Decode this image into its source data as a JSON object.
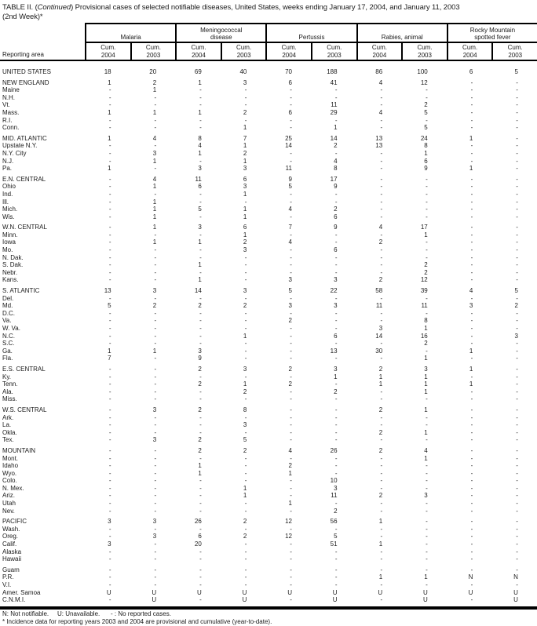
{
  "title": {
    "part1": "TABLE II. (",
    "italic": "Continued",
    "part2": ") Provisional cases of selected notifiable diseases, United States, weeks ending January 17, 2004, and January 11, 2003",
    "line2": "(2nd Week)*"
  },
  "header": {
    "reporting_area": "Reporting area",
    "groups": [
      {
        "name": "Malaria",
        "sub": [
          "Cum.\n2004",
          "Cum.\n2003"
        ]
      },
      {
        "name": "Meningococcal\ndisease",
        "sub": [
          "Cum.\n2004",
          "Cum.\n2003"
        ]
      },
      {
        "name": "Pertussis",
        "sub": [
          "Cum.\n2004",
          "Cum.\n2003"
        ]
      },
      {
        "name": "Rabies, animal",
        "sub": [
          "Cum.\n2004",
          "Cum.\n2003"
        ]
      },
      {
        "name": "Rocky Mountain\nspotted fever",
        "sub": [
          "Cum.\n2004",
          "Cum.\n2003"
        ]
      }
    ]
  },
  "sections": [
    {
      "rows": [
        {
          "area": "UNITED STATES",
          "values": [
            "18",
            "20",
            "69",
            "40",
            "70",
            "188",
            "86",
            "100",
            "6",
            "5"
          ]
        }
      ]
    },
    {
      "rows": [
        {
          "area": "NEW ENGLAND",
          "values": [
            "1",
            "2",
            "1",
            "3",
            "6",
            "41",
            "4",
            "12",
            "-",
            "-"
          ]
        },
        {
          "area": "Maine",
          "values": [
            "-",
            "1",
            "-",
            "-",
            "-",
            "-",
            "-",
            "-",
            "-",
            "-"
          ]
        },
        {
          "area": "N.H.",
          "values": [
            "-",
            "-",
            "-",
            "-",
            "-",
            "-",
            "-",
            "-",
            "-",
            "-"
          ]
        },
        {
          "area": "Vt.",
          "values": [
            "-",
            "-",
            "-",
            "-",
            "-",
            "11",
            "-",
            "2",
            "-",
            "-"
          ]
        },
        {
          "area": "Mass.",
          "values": [
            "1",
            "1",
            "1",
            "2",
            "6",
            "29",
            "4",
            "5",
            "-",
            "-"
          ]
        },
        {
          "area": "R.I.",
          "values": [
            "-",
            "-",
            "-",
            "-",
            "-",
            "-",
            "-",
            "-",
            "-",
            "-"
          ]
        },
        {
          "area": "Conn.",
          "values": [
            "-",
            "-",
            "-",
            "1",
            "-",
            "1",
            "-",
            "5",
            "-",
            "-"
          ]
        }
      ]
    },
    {
      "rows": [
        {
          "area": "MID. ATLANTIC",
          "values": [
            "1",
            "4",
            "8",
            "7",
            "25",
            "14",
            "13",
            "24",
            "1",
            "-"
          ]
        },
        {
          "area": "Upstate N.Y.",
          "values": [
            "-",
            "-",
            "4",
            "1",
            "14",
            "2",
            "13",
            "8",
            "-",
            "-"
          ]
        },
        {
          "area": "N.Y. City",
          "values": [
            "-",
            "3",
            "1",
            "2",
            "-",
            "-",
            "-",
            "1",
            "-",
            "-"
          ]
        },
        {
          "area": "N.J.",
          "values": [
            "-",
            "1",
            "-",
            "1",
            "-",
            "4",
            "-",
            "6",
            "-",
            "-"
          ]
        },
        {
          "area": "Pa.",
          "values": [
            "1",
            "-",
            "3",
            "3",
            "11",
            "8",
            "-",
            "9",
            "1",
            "-"
          ]
        }
      ]
    },
    {
      "rows": [
        {
          "area": "E.N. CENTRAL",
          "values": [
            "-",
            "4",
            "11",
            "6",
            "9",
            "17",
            "-",
            "-",
            "-",
            "-"
          ]
        },
        {
          "area": "Ohio",
          "values": [
            "-",
            "1",
            "6",
            "3",
            "5",
            "9",
            "-",
            "-",
            "-",
            "-"
          ]
        },
        {
          "area": "Ind.",
          "values": [
            "-",
            "-",
            "-",
            "1",
            "-",
            "-",
            "-",
            "-",
            "-",
            "-"
          ]
        },
        {
          "area": "Ill.",
          "values": [
            "-",
            "1",
            "-",
            "-",
            "-",
            "-",
            "-",
            "-",
            "-",
            "-"
          ]
        },
        {
          "area": "Mich.",
          "values": [
            "-",
            "1",
            "5",
            "1",
            "4",
            "2",
            "-",
            "-",
            "-",
            "-"
          ]
        },
        {
          "area": "Wis.",
          "values": [
            "-",
            "1",
            "-",
            "1",
            "-",
            "6",
            "-",
            "-",
            "-",
            "-"
          ]
        }
      ]
    },
    {
      "rows": [
        {
          "area": "W.N. CENTRAL",
          "values": [
            "-",
            "1",
            "3",
            "6",
            "7",
            "9",
            "4",
            "17",
            "-",
            "-"
          ]
        },
        {
          "area": "Minn.",
          "values": [
            "-",
            "-",
            "-",
            "1",
            "-",
            "-",
            "-",
            "1",
            "-",
            "-"
          ]
        },
        {
          "area": "Iowa",
          "values": [
            "-",
            "1",
            "1",
            "2",
            "4",
            "-",
            "2",
            "-",
            "-",
            "-"
          ]
        },
        {
          "area": "Mo.",
          "values": [
            "-",
            "-",
            "-",
            "3",
            "-",
            "6",
            "-",
            "-",
            "-",
            "-"
          ]
        },
        {
          "area": "N. Dak.",
          "values": [
            "-",
            "-",
            "-",
            "-",
            "-",
            "-",
            "-",
            "-",
            "-",
            "-"
          ]
        },
        {
          "area": "S. Dak.",
          "values": [
            "-",
            "-",
            "1",
            "-",
            "-",
            "-",
            "-",
            "2",
            "-",
            "-"
          ]
        },
        {
          "area": "Nebr.",
          "values": [
            "-",
            "-",
            "-",
            "-",
            "-",
            "-",
            "-",
            "2",
            "-",
            "-"
          ]
        },
        {
          "area": "Kans.",
          "values": [
            "-",
            "-",
            "1",
            "-",
            "3",
            "3",
            "2",
            "12",
            "-",
            "-"
          ]
        }
      ]
    },
    {
      "rows": [
        {
          "area": "S. ATLANTIC",
          "values": [
            "13",
            "3",
            "14",
            "3",
            "5",
            "22",
            "58",
            "39",
            "4",
            "5"
          ]
        },
        {
          "area": "Del.",
          "values": [
            "-",
            "-",
            "-",
            "-",
            "-",
            "-",
            "-",
            "-",
            "-",
            "-"
          ]
        },
        {
          "area": "Md.",
          "values": [
            "5",
            "2",
            "2",
            "2",
            "3",
            "3",
            "11",
            "11",
            "3",
            "2"
          ]
        },
        {
          "area": "D.C.",
          "values": [
            "-",
            "-",
            "-",
            "-",
            "-",
            "-",
            "-",
            "-",
            "-",
            "-"
          ]
        },
        {
          "area": "Va.",
          "values": [
            "-",
            "-",
            "-",
            "-",
            "2",
            "-",
            "-",
            "8",
            "-",
            "-"
          ]
        },
        {
          "area": "W. Va.",
          "values": [
            "-",
            "-",
            "-",
            "-",
            "-",
            "-",
            "3",
            "1",
            "-",
            "-"
          ]
        },
        {
          "area": "N.C.",
          "values": [
            "-",
            "-",
            "-",
            "1",
            "-",
            "6",
            "14",
            "16",
            "-",
            "3"
          ]
        },
        {
          "area": "S.C.",
          "values": [
            "-",
            "-",
            "-",
            "-",
            "-",
            "-",
            "-",
            "2",
            "-",
            "-"
          ]
        },
        {
          "area": "Ga.",
          "values": [
            "1",
            "1",
            "3",
            "-",
            "-",
            "13",
            "30",
            "-",
            "1",
            "-"
          ]
        },
        {
          "area": "Fla.",
          "values": [
            "7",
            "-",
            "9",
            "-",
            "-",
            "-",
            "-",
            "1",
            "-",
            "-"
          ]
        }
      ]
    },
    {
      "rows": [
        {
          "area": "E.S. CENTRAL",
          "values": [
            "-",
            "-",
            "2",
            "3",
            "2",
            "3",
            "2",
            "3",
            "1",
            "-"
          ]
        },
        {
          "area": "Ky.",
          "values": [
            "-",
            "-",
            "-",
            "-",
            "-",
            "1",
            "1",
            "1",
            "-",
            "-"
          ]
        },
        {
          "area": "Tenn.",
          "values": [
            "-",
            "-",
            "2",
            "1",
            "2",
            "-",
            "1",
            "1",
            "1",
            "-"
          ]
        },
        {
          "area": "Ala.",
          "values": [
            "-",
            "-",
            "-",
            "2",
            "-",
            "2",
            "-",
            "1",
            "-",
            "-"
          ]
        },
        {
          "area": "Miss.",
          "values": [
            "-",
            "-",
            "-",
            "-",
            "-",
            "-",
            "-",
            "-",
            "-",
            "-"
          ]
        }
      ]
    },
    {
      "rows": [
        {
          "area": "W.S. CENTRAL",
          "values": [
            "-",
            "3",
            "2",
            "8",
            "-",
            "-",
            "2",
            "1",
            "-",
            "-"
          ]
        },
        {
          "area": "Ark.",
          "values": [
            "-",
            "-",
            "-",
            "-",
            "-",
            "-",
            "-",
            "-",
            "-",
            "-"
          ]
        },
        {
          "area": "La.",
          "values": [
            "-",
            "-",
            "-",
            "3",
            "-",
            "-",
            "-",
            "-",
            "-",
            "-"
          ]
        },
        {
          "area": "Okla.",
          "values": [
            "-",
            "-",
            "-",
            "-",
            "-",
            "-",
            "2",
            "1",
            "-",
            "-"
          ]
        },
        {
          "area": "Tex.",
          "values": [
            "-",
            "3",
            "2",
            "5",
            "-",
            "-",
            "-",
            "-",
            "-",
            "-"
          ]
        }
      ]
    },
    {
      "rows": [
        {
          "area": "MOUNTAIN",
          "values": [
            "-",
            "-",
            "2",
            "2",
            "4",
            "26",
            "2",
            "4",
            "-",
            "-"
          ]
        },
        {
          "area": "Mont.",
          "values": [
            "-",
            "-",
            "-",
            "-",
            "-",
            "-",
            "-",
            "1",
            "-",
            "-"
          ]
        },
        {
          "area": "Idaho",
          "values": [
            "-",
            "-",
            "1",
            "-",
            "2",
            "-",
            "-",
            "-",
            "-",
            "-"
          ]
        },
        {
          "area": "Wyo.",
          "values": [
            "-",
            "-",
            "1",
            "-",
            "1",
            "-",
            "-",
            "-",
            "-",
            "-"
          ]
        },
        {
          "area": "Colo.",
          "values": [
            "-",
            "-",
            "-",
            "-",
            "-",
            "10",
            "-",
            "-",
            "-",
            "-"
          ]
        },
        {
          "area": "N. Mex.",
          "values": [
            "-",
            "-",
            "-",
            "1",
            "-",
            "3",
            "-",
            "-",
            "-",
            "-"
          ]
        },
        {
          "area": "Ariz.",
          "values": [
            "-",
            "-",
            "-",
            "1",
            "-",
            "11",
            "2",
            "3",
            "-",
            "-"
          ]
        },
        {
          "area": "Utah",
          "values": [
            "-",
            "-",
            "-",
            "-",
            "1",
            "-",
            "-",
            "-",
            "-",
            "-"
          ]
        },
        {
          "area": "Nev.",
          "values": [
            "-",
            "-",
            "-",
            "-",
            "-",
            "2",
            "-",
            "-",
            "-",
            "-"
          ]
        }
      ]
    },
    {
      "rows": [
        {
          "area": "PACIFIC",
          "values": [
            "3",
            "3",
            "26",
            "2",
            "12",
            "56",
            "1",
            "-",
            "-",
            "-"
          ]
        },
        {
          "area": "Wash.",
          "values": [
            "-",
            "-",
            "-",
            "-",
            "-",
            "-",
            "-",
            "-",
            "-",
            "-"
          ]
        },
        {
          "area": "Oreg.",
          "values": [
            "-",
            "3",
            "6",
            "2",
            "12",
            "5",
            "-",
            "-",
            "-",
            "-"
          ]
        },
        {
          "area": "Calif.",
          "values": [
            "3",
            "-",
            "20",
            "-",
            "-",
            "51",
            "1",
            "-",
            "-",
            "-"
          ]
        },
        {
          "area": "Alaska",
          "values": [
            "-",
            "-",
            "-",
            "-",
            "-",
            "-",
            "-",
            "-",
            "-",
            "-"
          ]
        },
        {
          "area": "Hawaii",
          "values": [
            "-",
            "-",
            "-",
            "-",
            "-",
            "-",
            "-",
            "-",
            "-",
            "-"
          ]
        }
      ]
    },
    {
      "rows": [
        {
          "area": "Guam",
          "values": [
            "-",
            "-",
            "-",
            "-",
            "-",
            "-",
            "-",
            "-",
            "-",
            "-"
          ]
        },
        {
          "area": "P.R.",
          "values": [
            "-",
            "-",
            "-",
            "-",
            "-",
            "-",
            "1",
            "1",
            "N",
            "N"
          ]
        },
        {
          "area": "V.I.",
          "values": [
            "-",
            "-",
            "-",
            "-",
            "-",
            "-",
            "-",
            "-",
            "-",
            "-"
          ]
        },
        {
          "area": "Amer. Samoa",
          "values": [
            "U",
            "U",
            "U",
            "U",
            "U",
            "U",
            "U",
            "U",
            "U",
            "U"
          ]
        },
        {
          "area": "C.N.M.I.",
          "values": [
            "-",
            "U",
            "-",
            "U",
            "-",
            "U",
            "-",
            "U",
            "-",
            "U"
          ]
        }
      ]
    }
  ],
  "footnotes": {
    "legend": [
      "N: Not notifiable.",
      "U: Unavailable.",
      "- : No reported cases."
    ],
    "note": "* Incidence data for reporting years 2003 and 2004 are provisional and cumulative (year-to-date)."
  },
  "colors": {
    "text": "#1a1a1a",
    "line": "#000000",
    "background": "#ffffff"
  }
}
